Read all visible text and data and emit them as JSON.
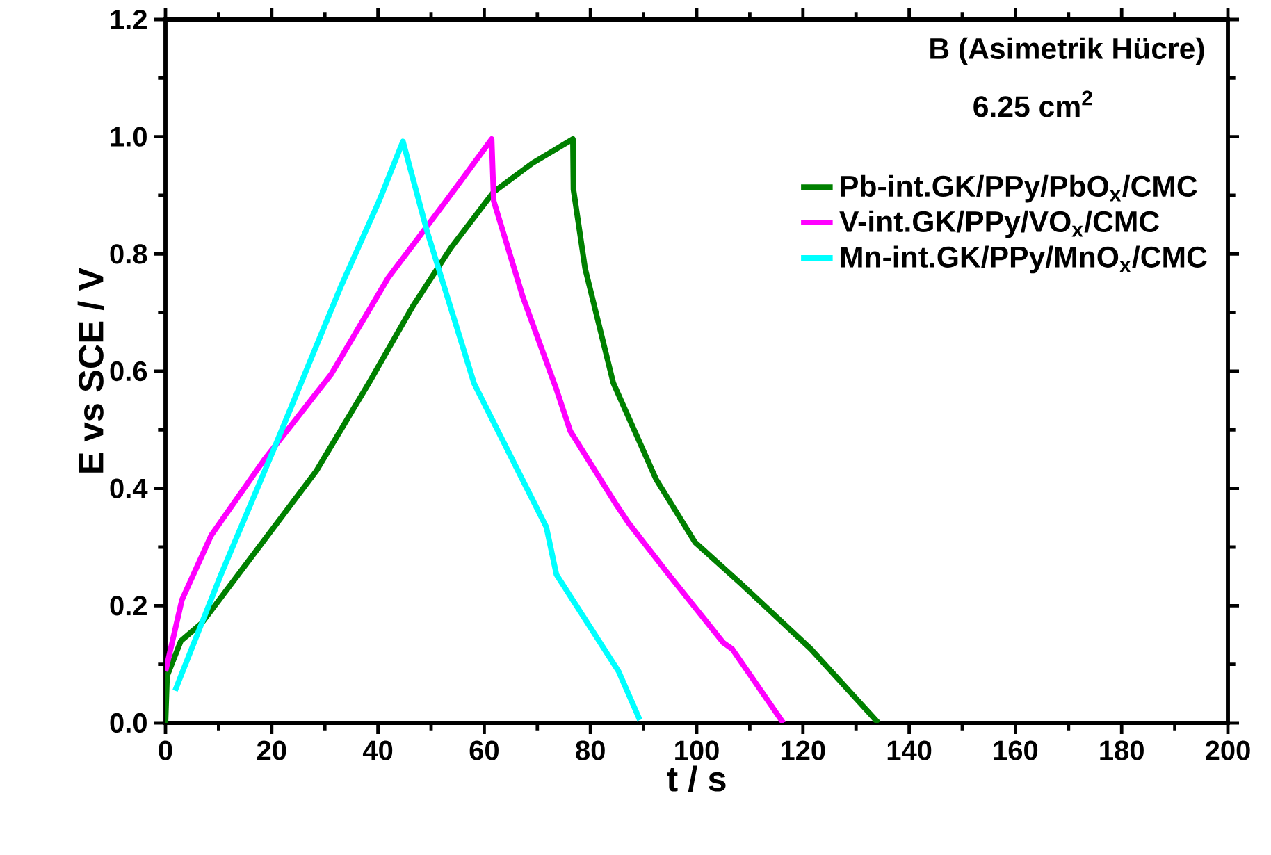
{
  "chart_data": {
    "type": "line",
    "xlabel": "t / s",
    "ylabel": "E vs SCE / V",
    "annotations": [
      "B (Asimetrik Hücre)",
      "6.25 cm$^{2}$"
    ],
    "xlim": [
      0,
      200
    ],
    "xticks": [
      0,
      20,
      40,
      60,
      80,
      100,
      120,
      140,
      160,
      180,
      200
    ],
    "ylim": [
      0,
      1.2
    ],
    "yticks": [
      {
        "value": 0,
        "label": "0.0"
      },
      {
        "value": 0.2,
        "label": "0.2"
      },
      {
        "value": 0.4,
        "label": "0.4"
      },
      {
        "value": 0.6,
        "label": "0.6"
      },
      {
        "value": 0.8,
        "label": "0.8"
      },
      {
        "value": 1,
        "label": "1.0"
      },
      {
        "value": 1.2,
        "label": "1.2"
      }
    ],
    "grid": false,
    "legend": "top right",
    "marker": "none",
    "line_style": "solid",
    "series": [
      {
        "name": "Pb-int.GK/PPy/PbO$_{x}$/CMC",
        "color": "#008000",
        "x": [
          0,
          0.3,
          2.9,
          6.8,
          17.6,
          28.4,
          38.3,
          46.5,
          53.7,
          61.8,
          69.1,
          76.7,
          76.8,
          79,
          84.3,
          92.4,
          99.7,
          108.4,
          121.5,
          134.2
        ],
        "values": [
          0,
          0.08,
          0.14,
          0.17,
          0.3,
          0.43,
          0.58,
          0.71,
          0.81,
          0.906,
          0.955,
          0.996,
          0.91,
          0.775,
          0.58,
          0.415,
          0.308,
          0.237,
          0.126,
          0
        ]
      },
      {
        "name": "V-int.GK/PPy/VO$_{x}$/CMC",
        "color": "#ff00ff",
        "x": [
          0,
          3.1,
          8.6,
          18.5,
          31.2,
          41.9,
          52.8,
          61.4,
          61.8,
          67.3,
          73.6,
          76.2,
          84.9,
          87.1,
          95,
          105,
          106.7,
          116.3
        ],
        "values": [
          0.088,
          0.21,
          0.32,
          0.448,
          0.595,
          0.759,
          0.89,
          0.996,
          0.89,
          0.726,
          0.569,
          0.498,
          0.372,
          0.342,
          0.25,
          0.137,
          0.126,
          0
        ]
      },
      {
        "name": "Mn-int.GK/PPy/MnO$_{x}$/CMC",
        "color": "#00ffff",
        "x": [
          1.8,
          10.4,
          20.3,
          32.9,
          40.2,
          44.7,
          49.2,
          58.1,
          71.7,
          73.6,
          85.3,
          89.3
        ],
        "values": [
          0.055,
          0.252,
          0.465,
          0.742,
          0.89,
          0.992,
          0.84,
          0.579,
          0.334,
          0.253,
          0.088,
          0.005
        ]
      }
    ]
  }
}
